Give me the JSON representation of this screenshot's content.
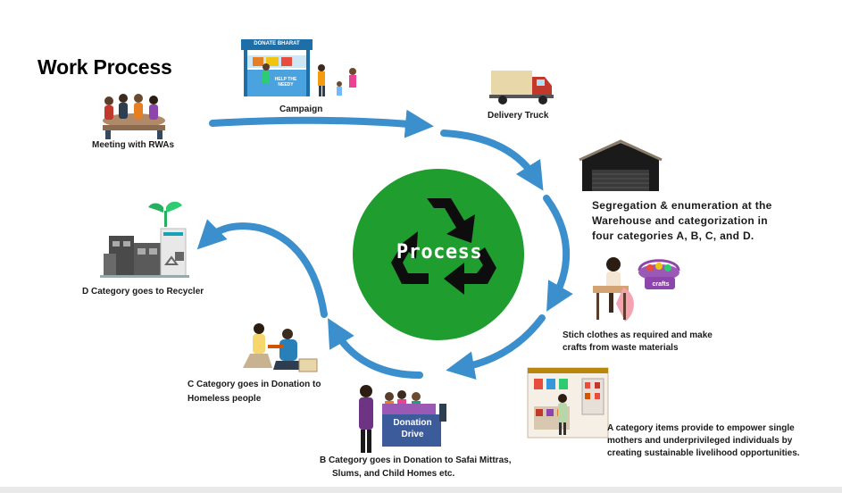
{
  "title": "Work Process",
  "center": {
    "label": "Process",
    "colors": {
      "circle": "#1f9d2f",
      "symbol": "#0d0d0d",
      "arrows": "#3b8fcd"
    }
  },
  "steps": {
    "meeting": "Meeting with RWAs",
    "campaign": "Campaign",
    "campaign_sign": "DONATE BHARAT",
    "campaign_banner": "HELP THE NEEDY",
    "delivery": "Delivery Truck",
    "segregation_1": "Segregation & enumeration at the",
    "segregation_2": "Warehouse and categorization in",
    "segregation_3": "four categories A, B, C, and D.",
    "stitch_1": "Stich clothes as required and make",
    "stitch_2": "crafts from waste materials",
    "crafts_tag": "crafts",
    "a_cat_1": "A category items provide to empower single",
    "a_cat_2": "mothers and underprivileged individuals by",
    "a_cat_3": "creating sustainable livelihood opportunities.",
    "b_cat_1": "B Category goes in Donation to Safai Mittras,",
    "b_cat_2": "Slums, and Child Homes etc.",
    "b_sign_1": "Donation",
    "b_sign_2": "Drive",
    "c_cat_1": "C Category goes in Donation to",
    "c_cat_2": "Homeless people",
    "d_cat": "D Category goes to Recycler"
  }
}
